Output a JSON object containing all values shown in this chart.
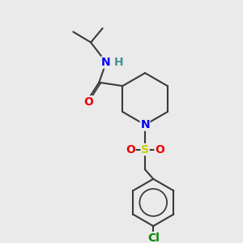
{
  "bg_color": "#eaeaea",
  "bond_color": "#3a3a3a",
  "bond_width": 1.5,
  "atom_colors": {
    "N": "#0000ee",
    "O": "#ee0000",
    "S": "#cccc00",
    "Cl": "#008800",
    "H": "#4a9090",
    "C": "#3a3a3a"
  },
  "fs": 10,
  "fss": 9
}
